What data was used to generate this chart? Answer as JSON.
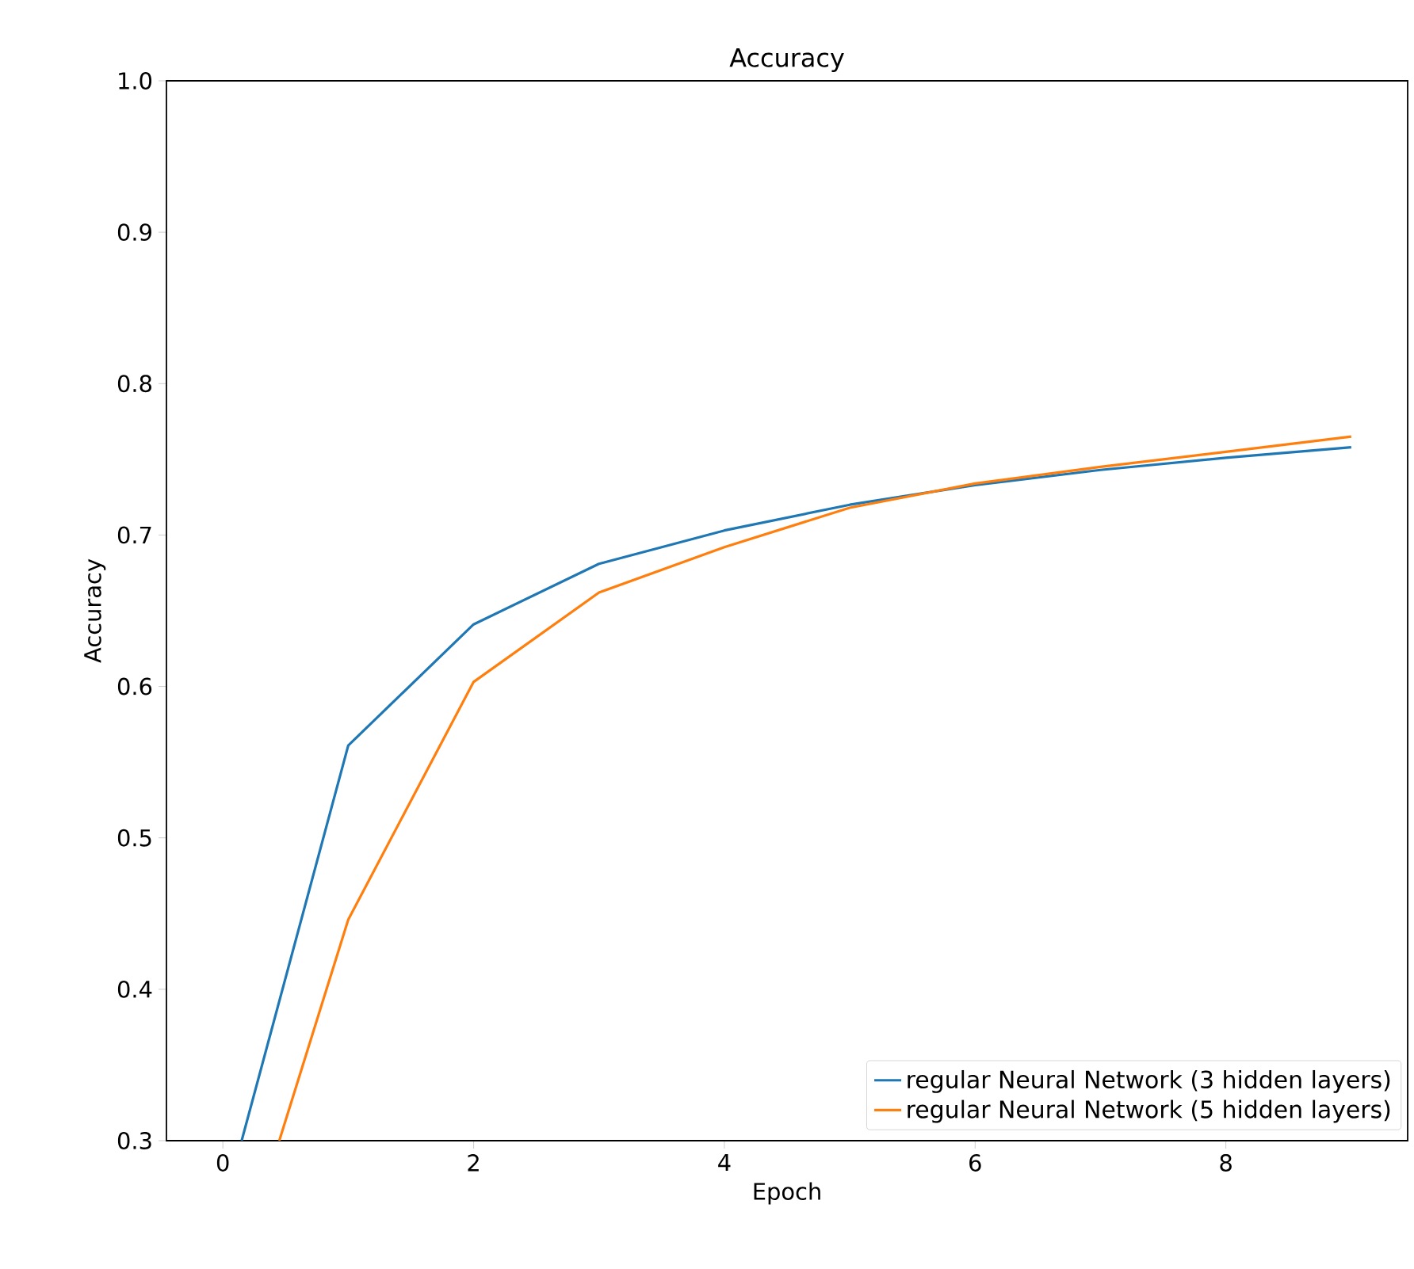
{
  "chart_data": {
    "type": "line",
    "title": "Accuracy",
    "xlabel": "Epoch",
    "ylabel": "Accuracy",
    "series": [
      {
        "name": "regular Neural Network (3 hidden layers)",
        "color": "#1f77b4",
        "x": [
          0.15,
          1,
          2,
          3,
          4,
          5,
          6,
          7,
          8,
          9
        ],
        "values": [
          0.3,
          0.561,
          0.641,
          0.681,
          0.703,
          0.72,
          0.733,
          0.743,
          0.751,
          0.758
        ]
      },
      {
        "name": "regular Neural Network (5 hidden layers)",
        "color": "#ff7f0e",
        "x": [
          0.45,
          1,
          2,
          3,
          4,
          5,
          6,
          7,
          8,
          9
        ],
        "values": [
          0.3,
          0.446,
          0.603,
          0.662,
          0.692,
          0.718,
          0.734,
          0.745,
          0.755,
          0.765
        ]
      }
    ],
    "xlim": [
      -0.45,
      9.45
    ],
    "ylim": [
      0.3,
      1.0
    ],
    "xticks": [
      0,
      2,
      4,
      6,
      8
    ],
    "yticks": [
      0.3,
      0.4,
      0.5,
      0.6,
      0.7,
      0.8,
      0.9,
      {
        "value": 1.0,
        "label": "1.0"
      }
    ],
    "legend": "bottom right",
    "marker": "none",
    "line_style": "solid",
    "grid": false
  }
}
